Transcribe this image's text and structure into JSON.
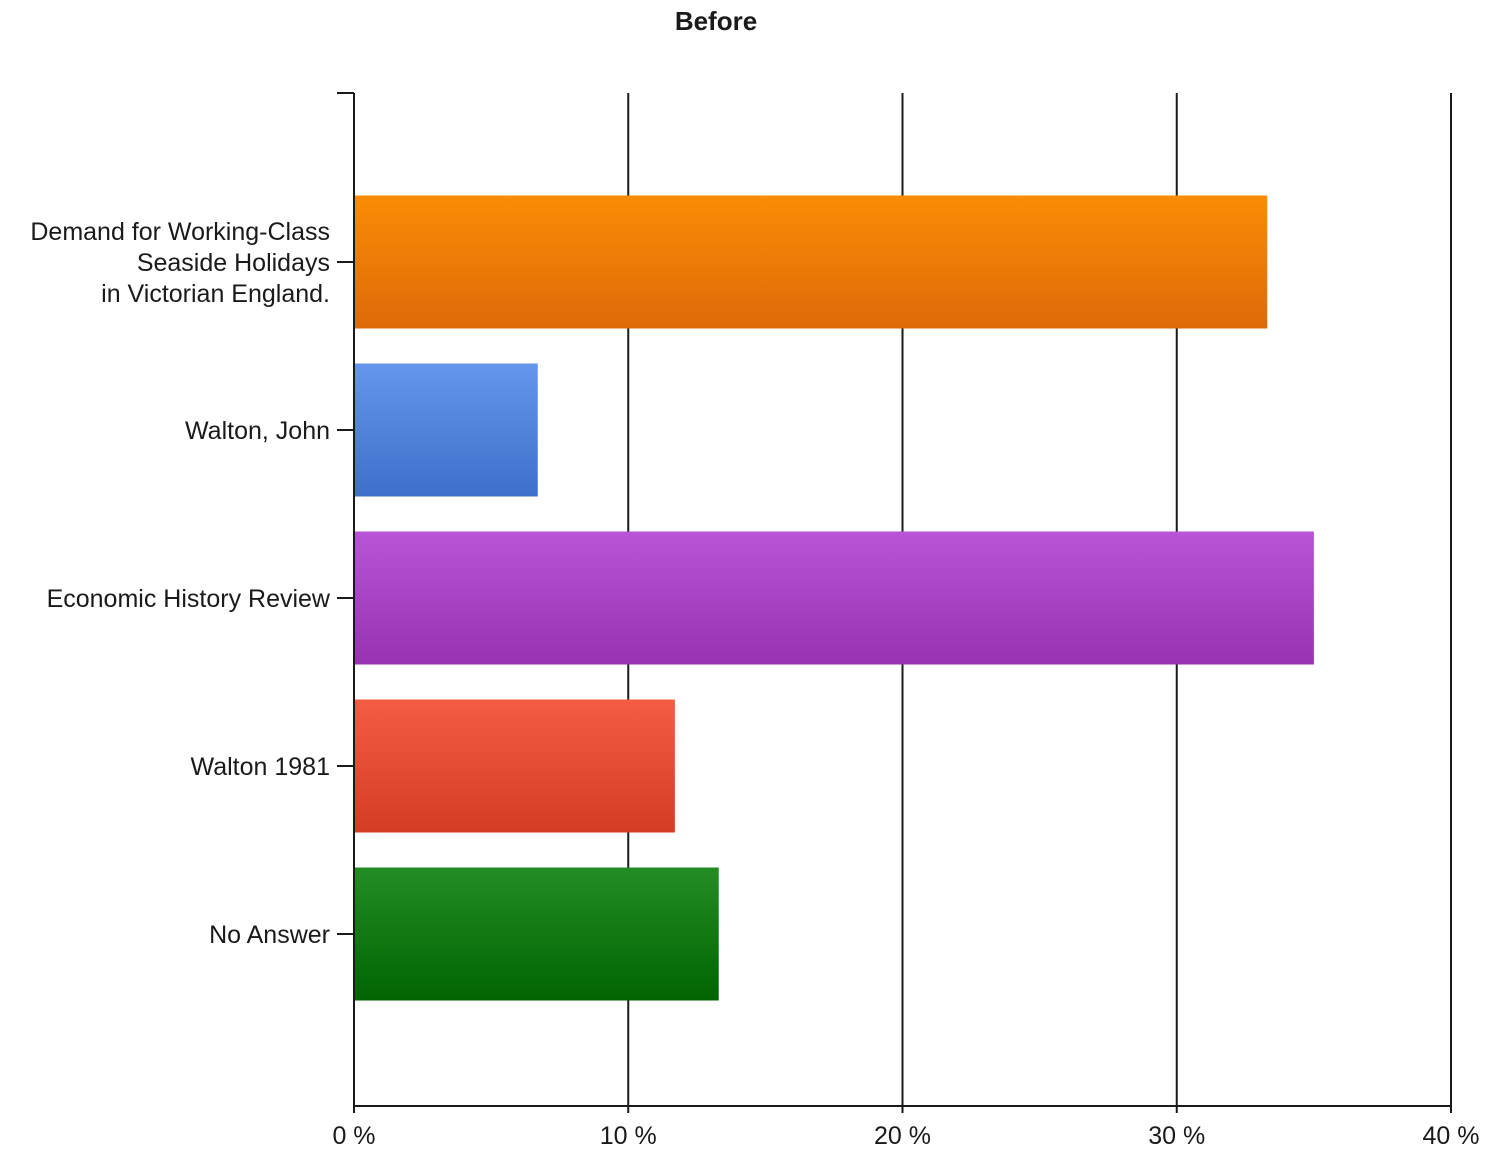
{
  "chart_data": {
    "type": "bar",
    "orientation": "horizontal",
    "title": "Before",
    "xlabel": "",
    "ylabel": "",
    "categories": [
      [
        "Demand for Working-Class",
        "Seaside Holidays",
        "in Victorian England."
      ],
      [
        "Walton, John"
      ],
      [
        "Economic History Review"
      ],
      [
        "Walton 1981"
      ],
      [
        "No Answer"
      ]
    ],
    "values": [
      33.3,
      6.7,
      35.0,
      11.7,
      13.3
    ],
    "colors": [
      [
        "#fb8c06",
        "#dd6a08"
      ],
      [
        "#6596ed",
        "#3f6fc9"
      ],
      [
        "#b954d6",
        "#9832b3"
      ],
      [
        "#f65c44",
        "#d63c22"
      ],
      [
        "#238d23",
        "#016401"
      ]
    ],
    "xlim": [
      0,
      40
    ],
    "xticks": [
      0,
      10,
      20,
      30,
      40
    ],
    "xtick_labels": [
      "0 %",
      "10 %",
      "20 %",
      "30 %",
      "40 %"
    ],
    "grid": true,
    "legend": "none"
  }
}
